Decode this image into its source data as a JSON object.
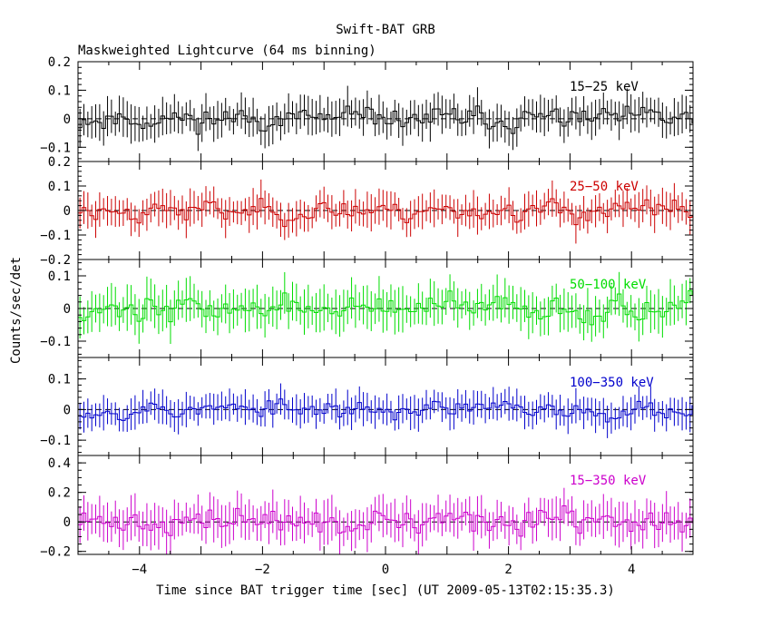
{
  "title": "Swift-BAT GRB",
  "subtitle": "Maskweighted Lightcurve (64 ms binning)",
  "xlabel": "Time since BAT trigger time [sec] (UT 2009-05-13T02:15:35.3)",
  "ylabel": "Counts/sec/det",
  "chart_data": {
    "type": "line",
    "xlim": [
      -5,
      5
    ],
    "bin_width_sec": 0.064,
    "x_ticks": [
      "−4",
      "−2",
      "0",
      "2",
      "4"
    ],
    "x_tick_values": [
      -4,
      -2,
      0,
      2,
      4
    ],
    "panels": [
      {
        "name": "15−25 keV",
        "color": "#000000",
        "ylim": [
          -0.15,
          0.2
        ],
        "yticks": [
          -0.1,
          0,
          0.1,
          0.2
        ],
        "ytick_labels": [
          "−0.1",
          "0",
          "0.1",
          "0.2"
        ],
        "amp": 0.045,
        "err": 0.055,
        "seed": 11
      },
      {
        "name": "25−50 keV",
        "color": "#cc0000",
        "ylim": [
          -0.2,
          0.2
        ],
        "yticks": [
          -0.2,
          -0.1,
          0,
          0.1,
          0.2
        ],
        "ytick_labels": [
          "−0.2",
          "−0.1",
          "0",
          "0.1",
          "0.2"
        ],
        "amp": 0.05,
        "err": 0.06,
        "seed": 23
      },
      {
        "name": "50−100 keV",
        "color": "#00dd00",
        "ylim": [
          -0.15,
          0.15
        ],
        "yticks": [
          -0.1,
          0,
          0.1
        ],
        "ytick_labels": [
          "−0.1",
          "0",
          "0.1"
        ],
        "amp": 0.045,
        "err": 0.055,
        "seed": 37
      },
      {
        "name": "100−350 keV",
        "color": "#0000cc",
        "ylim": [
          -0.15,
          0.17
        ],
        "yticks": [
          -0.1,
          0,
          0.1
        ],
        "ytick_labels": [
          "−0.1",
          "0",
          "0.1"
        ],
        "amp": 0.035,
        "err": 0.045,
        "seed": 53
      },
      {
        "name": "15−350 keV",
        "color": "#cc00cc",
        "ylim": [
          -0.22,
          0.45
        ],
        "yticks": [
          -0.2,
          0,
          0.2,
          0.4
        ],
        "ytick_labels": [
          "−0.2",
          "0",
          "0.2",
          "0.4"
        ],
        "amp": 0.1,
        "err": 0.12,
        "seed": 71
      }
    ]
  }
}
